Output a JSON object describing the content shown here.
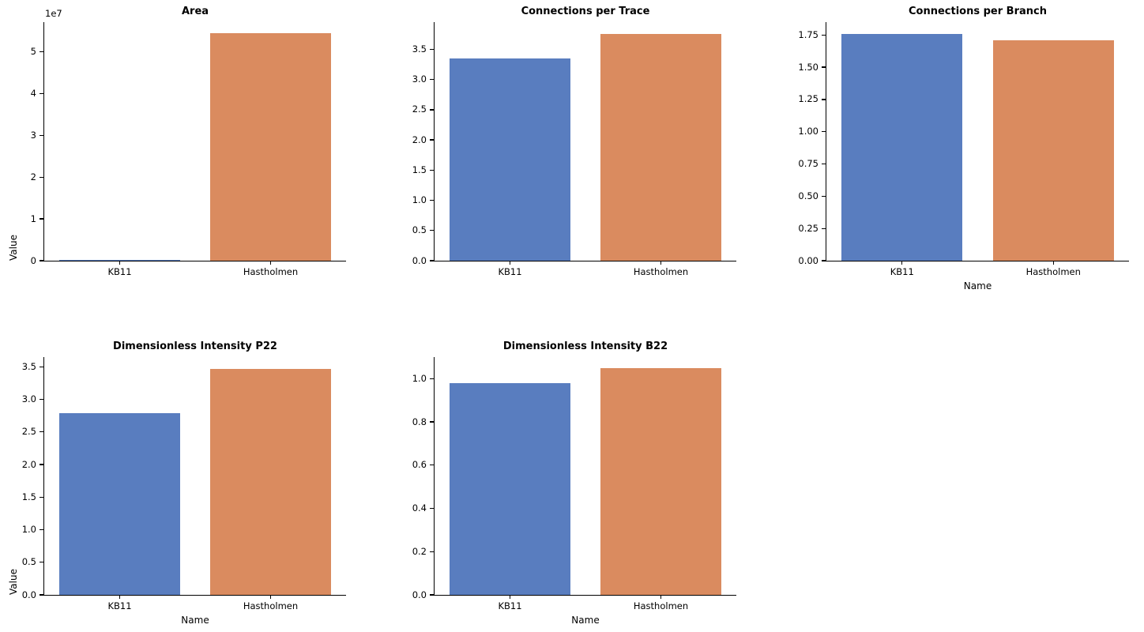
{
  "figure": {
    "background_color": "#ffffff",
    "axis_color": "#000000",
    "palette": {
      "KB11": "#597dbf",
      "Hastholmen": "#da8b5f"
    }
  },
  "chart_data": [
    {
      "id": "area",
      "type": "bar",
      "title": "Area",
      "xlabel": "",
      "ylabel": "Value",
      "categories": [
        "KB11",
        "Hastholmen"
      ],
      "values": [
        100000,
        54400000
      ],
      "ylim": [
        0,
        57100000
      ],
      "yticks": [
        0,
        10000000,
        20000000,
        30000000,
        40000000,
        50000000
      ],
      "ytick_labels": [
        "0",
        "1",
        "2",
        "3",
        "4",
        "5"
      ],
      "y_offset_text": "1e7",
      "grid": false,
      "legend": "none"
    },
    {
      "id": "connections-per-trace",
      "type": "bar",
      "title": "Connections per Trace",
      "xlabel": "",
      "ylabel": "",
      "categories": [
        "KB11",
        "Hastholmen"
      ],
      "values": [
        3.35,
        3.76
      ],
      "ylim": [
        0,
        3.95
      ],
      "yticks": [
        0,
        0.5,
        1.0,
        1.5,
        2.0,
        2.5,
        3.0,
        3.5
      ],
      "ytick_labels": [
        "0.0",
        "0.5",
        "1.0",
        "1.5",
        "2.0",
        "2.5",
        "3.0",
        "3.5"
      ],
      "y_offset_text": "",
      "grid": false,
      "legend": "none"
    },
    {
      "id": "connections-per-branch",
      "type": "bar",
      "title": "Connections per Branch",
      "xlabel": "Name",
      "ylabel": "",
      "categories": [
        "KB11",
        "Hastholmen"
      ],
      "values": [
        1.76,
        1.71
      ],
      "ylim": [
        0,
        1.85
      ],
      "yticks": [
        0,
        0.25,
        0.5,
        0.75,
        1.0,
        1.25,
        1.5,
        1.75
      ],
      "ytick_labels": [
        "0.00",
        "0.25",
        "0.50",
        "0.75",
        "1.00",
        "1.25",
        "1.50",
        "1.75"
      ],
      "y_offset_text": "",
      "grid": false,
      "legend": "none"
    },
    {
      "id": "dimensionless-intensity-p22",
      "type": "bar",
      "title": "Dimensionless Intensity P22",
      "xlabel": "Name",
      "ylabel": "Value",
      "categories": [
        "KB11",
        "Hastholmen"
      ],
      "values": [
        2.79,
        3.47
      ],
      "ylim": [
        0,
        3.65
      ],
      "yticks": [
        0,
        0.5,
        1.0,
        1.5,
        2.0,
        2.5,
        3.0,
        3.5
      ],
      "ytick_labels": [
        "0.0",
        "0.5",
        "1.0",
        "1.5",
        "2.0",
        "2.5",
        "3.0",
        "3.5"
      ],
      "y_offset_text": "",
      "grid": false,
      "legend": "none"
    },
    {
      "id": "dimensionless-intensity-b22",
      "type": "bar",
      "title": "Dimensionless Intensity B22",
      "xlabel": "Name",
      "ylabel": "",
      "categories": [
        "KB11",
        "Hastholmen"
      ],
      "values": [
        0.98,
        1.05
      ],
      "ylim": [
        0,
        1.1
      ],
      "yticks": [
        0,
        0.2,
        0.4,
        0.6,
        0.8,
        1.0
      ],
      "ytick_labels": [
        "0.0",
        "0.2",
        "0.4",
        "0.6",
        "0.8",
        "1.0"
      ],
      "y_offset_text": "",
      "grid": false,
      "legend": "none"
    }
  ]
}
